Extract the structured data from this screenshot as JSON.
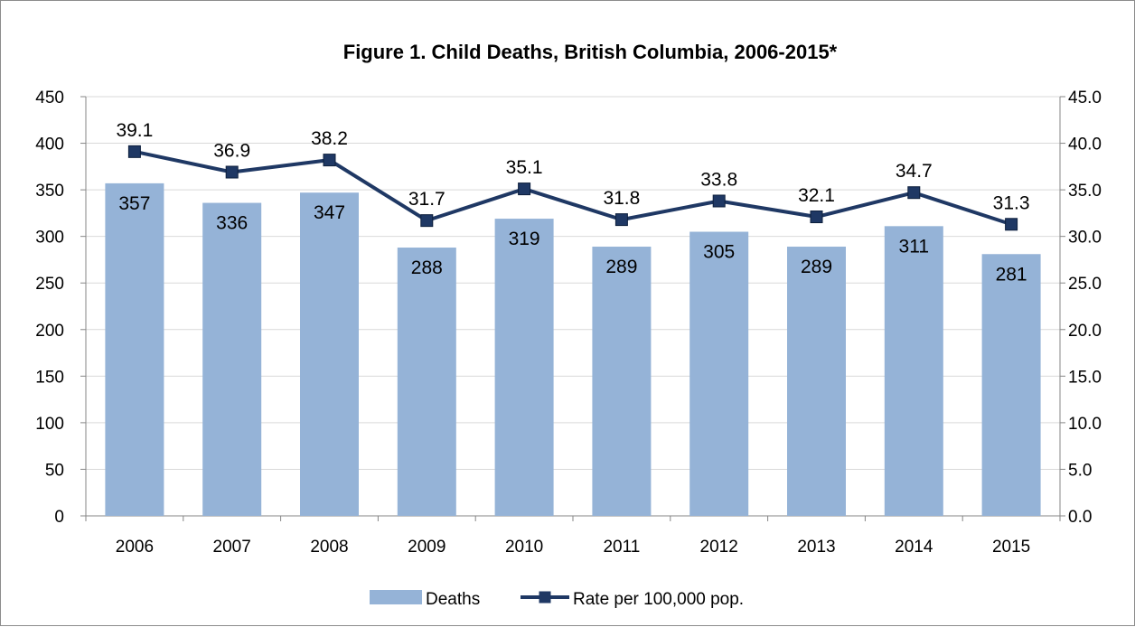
{
  "chart_data": {
    "type": "bar+line",
    "title": "Figure 1. Child Deaths, British Columbia, 2006-2015*",
    "categories": [
      "2006",
      "2007",
      "2008",
      "2009",
      "2010",
      "2011",
      "2012",
      "2013",
      "2014",
      "2015"
    ],
    "series": [
      {
        "name": "Deaths",
        "type": "bar",
        "axis": "left",
        "color": "#95b3d7",
        "values": [
          357,
          336,
          347,
          288,
          319,
          289,
          305,
          289,
          311,
          281
        ]
      },
      {
        "name": "Rate per 100,000 pop.",
        "type": "line",
        "axis": "right",
        "color": "#1f3864",
        "values": [
          39.1,
          36.9,
          38.2,
          31.7,
          35.1,
          31.8,
          33.8,
          32.1,
          34.7,
          31.3
        ]
      }
    ],
    "y_left": {
      "min": 0,
      "max": 450,
      "step": 50,
      "tick_labels": [
        "0",
        "50",
        "100",
        "150",
        "200",
        "250",
        "300",
        "350",
        "400",
        "450"
      ]
    },
    "y_right": {
      "min": 0,
      "max": 45,
      "step": 5,
      "tick_labels": [
        "0.0",
        "5.0",
        "10.0",
        "15.0",
        "20.0",
        "25.0",
        "30.0",
        "35.0",
        "40.0",
        "45.0"
      ]
    },
    "grid": true,
    "legend_position": "bottom"
  }
}
